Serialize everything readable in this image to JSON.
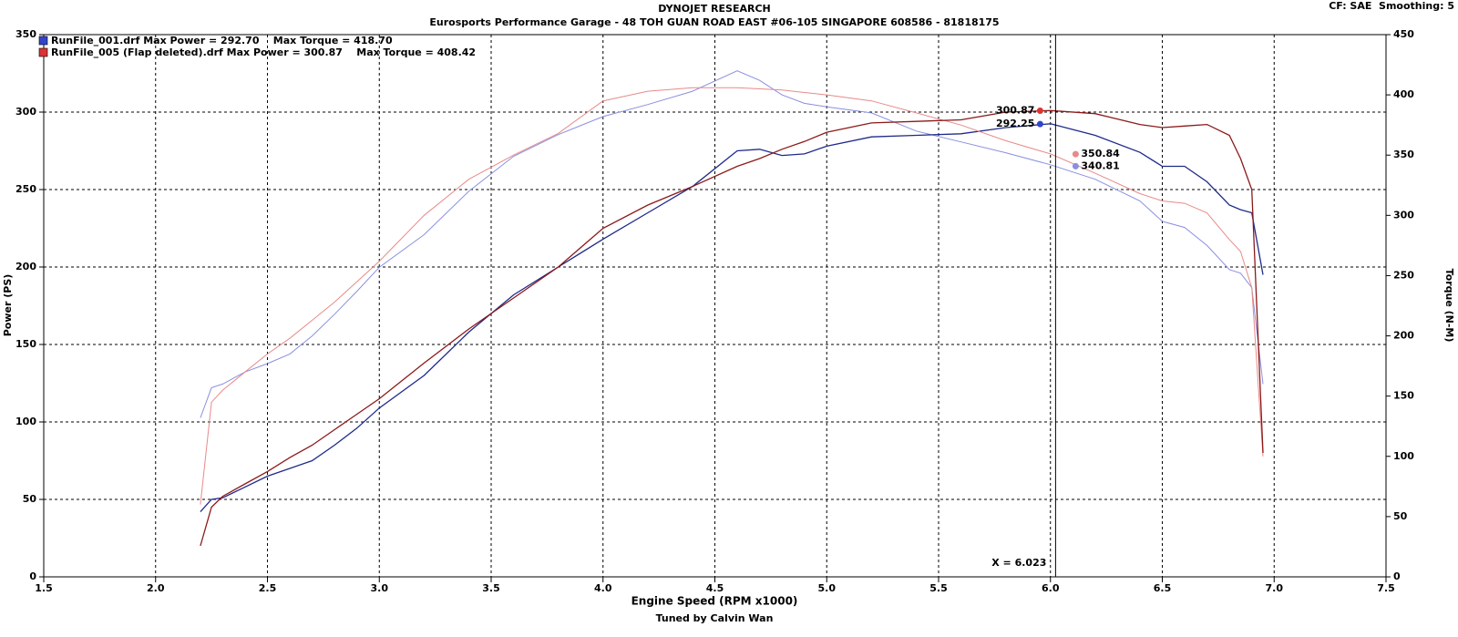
{
  "chart_data": {
    "type": "line",
    "title": "DYNOJET RESEARCH",
    "subtitle": "Eurosports Performance Garage - 48 TOH GUAN ROAD EAST #06-105 SINGAPORE 608586 - 81818175",
    "settings_label": "CF: SAE  Smoothing: 5",
    "footer": "Tuned by Calvin Wan",
    "xlabel": "Engine Speed (RPM x1000)",
    "ylabel": "Power (PS)",
    "y2label": "Torque (N-M)",
    "grid": true,
    "xlim": [
      1.5,
      7.5
    ],
    "xticks": [
      1.5,
      {
        "value": 2,
        "label": "2.0"
      },
      2.5,
      {
        "value": 3,
        "label": "3.0"
      },
      3.5,
      {
        "value": 4,
        "label": "4.0"
      },
      4.5,
      {
        "value": 5,
        "label": "5.0"
      },
      5.5,
      {
        "value": 6,
        "label": "6.0"
      },
      6.5,
      {
        "value": 7,
        "label": "7.0"
      },
      7.5
    ],
    "ylim": [
      0,
      350
    ],
    "yticks": [
      0,
      50,
      100,
      150,
      200,
      250,
      300,
      350
    ],
    "y2lim": [
      0,
      450
    ],
    "y2ticks": [
      0,
      50,
      100,
      150,
      200,
      250,
      300,
      350,
      400,
      450
    ],
    "x": [
      2.2,
      2.25,
      2.3,
      2.4,
      2.5,
      2.6,
      2.7,
      2.8,
      2.9,
      3.0,
      3.2,
      3.4,
      3.6,
      3.8,
      4.0,
      4.2,
      4.4,
      4.6,
      4.7,
      4.8,
      4.9,
      5.0,
      5.2,
      5.4,
      5.6,
      5.8,
      6.0,
      6.2,
      6.4,
      6.5,
      6.6,
      6.7,
      6.8,
      6.85,
      6.9,
      6.95
    ],
    "cursor": {
      "label": "X = 6.023",
      "x": 6.023
    },
    "series": [
      {
        "name": "RunFile_001.drf Max Power = 292.70    Max Torque = 418.70",
        "color": "#3344cc",
        "power": {
          "color": "#1f2a8a",
          "cursor_value": 292.25,
          "values": [
            42,
            50,
            51,
            58,
            65,
            70,
            75,
            85,
            96,
            109,
            130,
            158,
            182,
            200,
            218,
            235,
            252,
            275,
            276,
            272,
            273,
            278,
            284,
            285,
            286,
            290,
            292.5,
            285,
            274,
            265,
            265,
            255,
            240,
            237,
            235,
            195
          ]
        },
        "torque": {
          "color": "#8a8fe0",
          "axis": "y2",
          "cursor_value": 340.81,
          "values": [
            132,
            157,
            160,
            170,
            177,
            185,
            200,
            218,
            237,
            257,
            284,
            320,
            349,
            367,
            382,
            392,
            403,
            420,
            412,
            400,
            393,
            390,
            385,
            370,
            361,
            352,
            342,
            330,
            312,
            295,
            290,
            275,
            255,
            252,
            240,
            160
          ]
        }
      },
      {
        "name": "RunFile_005 (Flap deleted).drf Max Power = 300.87    Max Torque = 408.42",
        "color": "#dd3333",
        "power": {
          "color": "#8b1a1a",
          "cursor_value": 300.87,
          "values": [
            20,
            45,
            52,
            60,
            68,
            77,
            85,
            95,
            105,
            115,
            138,
            160,
            180,
            200,
            225,
            240,
            252,
            265,
            270,
            276,
            281,
            287,
            293,
            294,
            295,
            300,
            301,
            299,
            292,
            290,
            291,
            292,
            285,
            270,
            250,
            80
          ]
        },
        "torque": {
          "color": "#e88a8a",
          "axis": "y2",
          "cursor_value": 350.84,
          "values": [
            60,
            145,
            155,
            170,
            185,
            198,
            213,
            228,
            245,
            262,
            300,
            330,
            350,
            368,
            395,
            403,
            406,
            406,
            405,
            404,
            402,
            400,
            395,
            385,
            375,
            362,
            351,
            335,
            318,
            312,
            310,
            302,
            280,
            270,
            240,
            100
          ]
        }
      }
    ]
  }
}
